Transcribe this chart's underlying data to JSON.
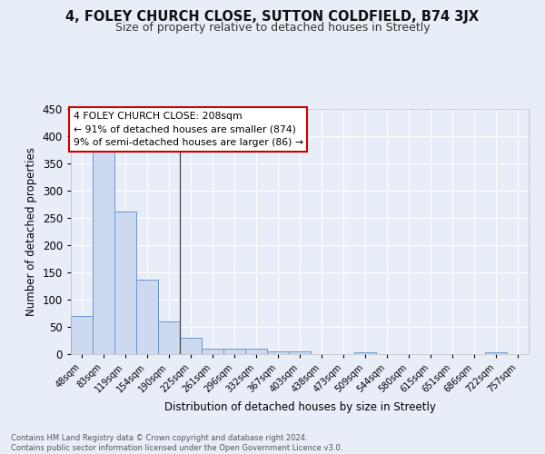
{
  "title1": "4, FOLEY CHURCH CLOSE, SUTTON COLDFIELD, B74 3JX",
  "title2": "Size of property relative to detached houses in Streetly",
  "xlabel": "Distribution of detached houses by size in Streetly",
  "ylabel": "Number of detached properties",
  "bar_labels": [
    "48sqm",
    "83sqm",
    "119sqm",
    "154sqm",
    "190sqm",
    "225sqm",
    "261sqm",
    "296sqm",
    "332sqm",
    "367sqm",
    "403sqm",
    "438sqm",
    "473sqm",
    "509sqm",
    "544sqm",
    "580sqm",
    "615sqm",
    "651sqm",
    "686sqm",
    "722sqm",
    "757sqm"
  ],
  "bar_values": [
    70,
    375,
    262,
    136,
    60,
    30,
    10,
    10,
    10,
    5,
    5,
    0,
    0,
    4,
    0,
    0,
    0,
    0,
    0,
    4,
    0
  ],
  "bar_color": "#cdd9ef",
  "bar_edge_color": "#6b96cc",
  "annotation_text": "4 FOLEY CHURCH CLOSE: 208sqm\n← 91% of detached houses are smaller (874)\n9% of semi-detached houses are larger (86) →",
  "annotation_box_color": "#ffffff",
  "annotation_box_edge": "#cc0000",
  "vline_x_pos": 4.5,
  "ylim": [
    0,
    450
  ],
  "yticks": [
    0,
    50,
    100,
    150,
    200,
    250,
    300,
    350,
    400,
    450
  ],
  "footer_line1": "Contains HM Land Registry data © Crown copyright and database right 2024.",
  "footer_line2": "Contains public sector information licensed under the Open Government Licence v3.0.",
  "bg_color": "#e8eef8",
  "plot_bg_color": "#e8eef8",
  "title1_fontsize": 10.5,
  "title2_fontsize": 9,
  "grid_color": "#ffffff",
  "tick_label_fontsize": 7,
  "ylabel_fontsize": 8.5,
  "xlabel_fontsize": 8.5
}
